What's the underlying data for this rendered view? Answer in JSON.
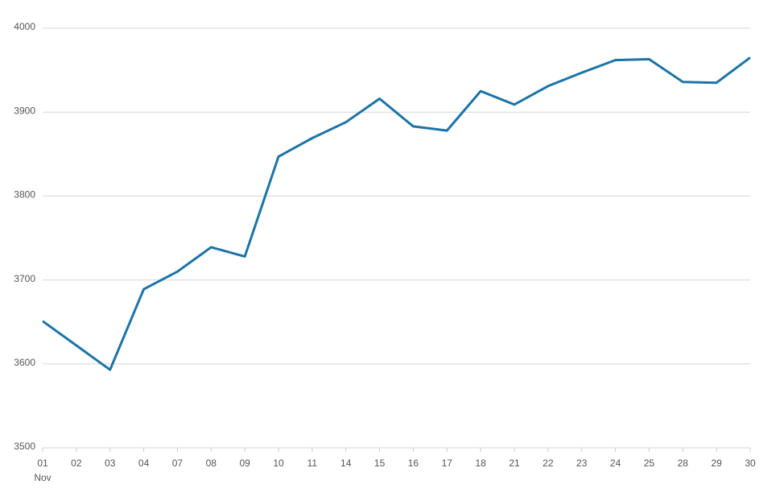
{
  "chart_data": {
    "type": "line",
    "categories": [
      "01",
      "02",
      "03",
      "04",
      "07",
      "08",
      "09",
      "10",
      "11",
      "14",
      "15",
      "16",
      "17",
      "18",
      "21",
      "22",
      "23",
      "24",
      "25",
      "28",
      "29",
      "30"
    ],
    "month_label": "Nov",
    "series": [
      {
        "color": "#1b74a6",
        "values": [
          3651,
          3622,
          3593,
          3689,
          3710,
          3739,
          3728,
          3847,
          3869,
          3888,
          3916,
          3883,
          3878,
          3925,
          3909,
          3931,
          3947,
          3962,
          3963,
          3936,
          3935,
          3965
        ]
      }
    ],
    "ylim": [
      3500,
      4000
    ],
    "yticks": [
      3500,
      3600,
      3700,
      3800,
      3900,
      4000
    ],
    "grid": true
  }
}
